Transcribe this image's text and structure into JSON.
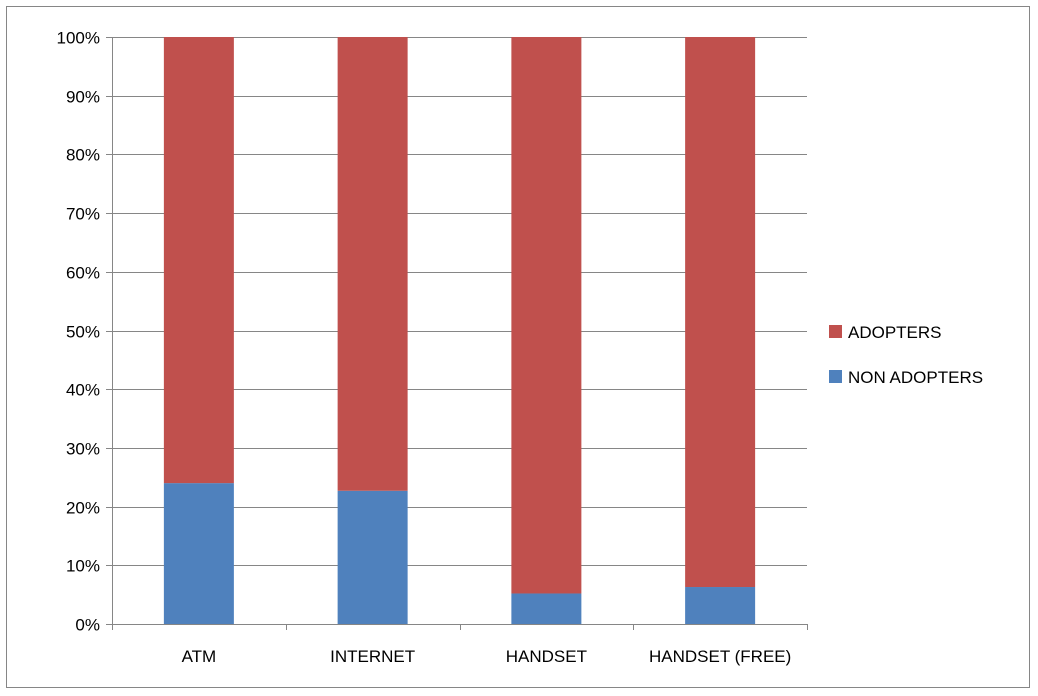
{
  "chart_data": {
    "type": "bar",
    "stacked": true,
    "percent_stacked": true,
    "categories": [
      "ATM",
      "INTERNET",
      "HANDSET",
      "HANDSET (FREE)"
    ],
    "series": [
      {
        "name": "NON ADOPTERS",
        "color": "#4F81BD",
        "values": [
          24,
          22.7,
          5.2,
          6.3
        ]
      },
      {
        "name": "ADOPTERS",
        "color": "#C0504D",
        "values": [
          76,
          77.3,
          94.8,
          93.7
        ]
      }
    ],
    "ylim": [
      0,
      100
    ],
    "y_ticks": [
      "0%",
      "10%",
      "20%",
      "30%",
      "40%",
      "50%",
      "60%",
      "70%",
      "80%",
      "90%",
      "100%"
    ],
    "grid": true,
    "legend": {
      "placement": "right",
      "entries": [
        {
          "label": "ADOPTERS",
          "color": "#C0504D"
        },
        {
          "label": "NON ADOPTERS",
          "color": "#4F81BD"
        }
      ]
    },
    "title": "",
    "xlabel": "",
    "ylabel": ""
  }
}
